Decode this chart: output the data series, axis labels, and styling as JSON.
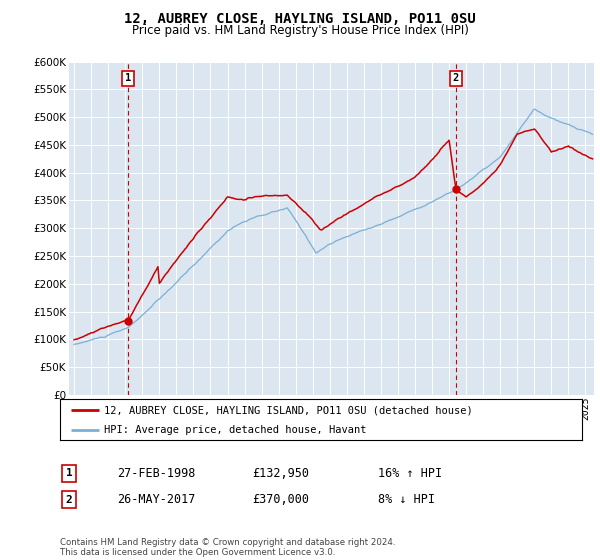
{
  "title": "12, AUBREY CLOSE, HAYLING ISLAND, PO11 0SU",
  "subtitle": "Price paid vs. HM Land Registry's House Price Index (HPI)",
  "legend_line1": "12, AUBREY CLOSE, HAYLING ISLAND, PO11 0SU (detached house)",
  "legend_line2": "HPI: Average price, detached house, Havant",
  "sale1_date": "27-FEB-1998",
  "sale1_price": "£132,950",
  "sale1_hpi": "16% ↑ HPI",
  "sale2_date": "26-MAY-2017",
  "sale2_price": "£370,000",
  "sale2_hpi": "8% ↓ HPI",
  "footnote": "Contains HM Land Registry data © Crown copyright and database right 2024.\nThis data is licensed under the Open Government Licence v3.0.",
  "red_color": "#cc0000",
  "blue_color": "#7bafd4",
  "background_color": "#dce6f1",
  "ylim": [
    0,
    600000
  ],
  "ytick_values": [
    0,
    50000,
    100000,
    150000,
    200000,
    250000,
    300000,
    350000,
    400000,
    450000,
    500000,
    550000,
    600000
  ],
  "sale1_year": 1998.15,
  "sale2_year": 2017.4,
  "sale1_price_val": 132950,
  "sale2_price_val": 370000
}
